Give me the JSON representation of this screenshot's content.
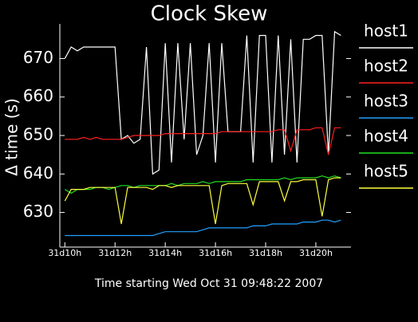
{
  "chart_data": {
    "type": "line",
    "title": "Clock Skew",
    "y_label": "Δ time (s)",
    "x_label": "Time starting Wed Oct 31  09:48:22 2007",
    "x": [
      10.0,
      10.25,
      10.5,
      10.75,
      11.0,
      11.25,
      11.5,
      11.75,
      12.0,
      12.25,
      12.5,
      12.75,
      13.0,
      13.25,
      13.5,
      13.75,
      14.0,
      14.25,
      14.5,
      14.75,
      15.0,
      15.25,
      15.5,
      15.75,
      16.0,
      16.25,
      16.5,
      16.75,
      17.0,
      17.25,
      17.5,
      17.75,
      18.0,
      18.25,
      18.5,
      18.75,
      19.0,
      19.25,
      19.5,
      19.75,
      20.0,
      20.25,
      20.5,
      20.75,
      21.0
    ],
    "series": [
      {
        "name": "host1",
        "color": "#ffffff",
        "values": [
          670,
          673,
          672,
          673,
          673,
          673,
          673,
          673,
          673,
          649,
          650,
          648,
          649,
          673,
          640,
          641,
          674,
          643,
          674,
          649,
          674,
          645,
          650,
          674,
          643,
          674,
          651,
          651,
          651,
          676,
          643,
          676,
          676,
          643,
          676,
          645,
          675,
          643,
          675,
          675,
          676,
          676,
          645,
          677,
          676
        ]
      },
      {
        "name": "host2",
        "color": "#ff2020",
        "values": [
          649,
          649,
          649,
          649.5,
          649,
          649.5,
          649,
          649,
          649,
          649,
          649.5,
          650,
          650,
          650,
          650,
          650,
          650.5,
          650.5,
          650.5,
          650.5,
          650.5,
          650.5,
          650.5,
          650.5,
          650.5,
          651,
          651,
          651,
          651,
          651,
          651,
          651,
          651,
          651,
          651.5,
          651.5,
          646,
          651.5,
          651.5,
          651.5,
          652,
          652,
          645,
          652,
          652
        ]
      },
      {
        "name": "host3",
        "color": "#20a0ff",
        "values": [
          624,
          624,
          624,
          624,
          624,
          624,
          624,
          624,
          624,
          624,
          624,
          624,
          624,
          624,
          624,
          624.5,
          625,
          625,
          625,
          625,
          625,
          625,
          625.5,
          626,
          626,
          626,
          626,
          626,
          626,
          626,
          626.5,
          626.5,
          626.5,
          627,
          627,
          627,
          627,
          627,
          627.5,
          627.5,
          627.5,
          628,
          628,
          627.5,
          628
        ]
      },
      {
        "name": "host4",
        "color": "#20e020",
        "values": [
          636,
          635,
          636,
          636,
          636,
          636.5,
          636.5,
          636,
          636.5,
          637,
          637,
          636.5,
          637,
          637,
          637,
          637,
          637,
          637.5,
          637,
          637.5,
          637.5,
          637.5,
          638,
          637.5,
          638,
          638,
          638,
          638,
          638,
          638.5,
          638.5,
          638.5,
          638.5,
          638.5,
          638.5,
          639,
          638.5,
          639,
          639,
          639,
          639,
          639.5,
          639,
          639.5,
          639
        ]
      },
      {
        "name": "host5",
        "color": "#ffff40",
        "values": [
          633,
          636,
          636,
          636,
          636.5,
          636.5,
          636.5,
          636.5,
          636.5,
          627,
          636.5,
          636.5,
          636.5,
          636.5,
          636,
          637,
          637,
          636.5,
          637,
          637,
          637,
          637,
          637,
          637,
          627,
          637,
          637.5,
          637.5,
          637.5,
          637.5,
          632,
          638,
          638,
          638,
          638,
          633,
          638,
          638,
          638.5,
          638.5,
          638.5,
          629,
          638.5,
          639,
          639
        ]
      }
    ],
    "xlim": [
      9.8,
      21.4
    ],
    "xticks": [
      {
        "value": 10,
        "label": "31d10h"
      },
      {
        "value": 12,
        "label": "31d12h"
      },
      {
        "value": 14,
        "label": "31d14h"
      },
      {
        "value": 16,
        "label": "31d16h"
      },
      {
        "value": 18,
        "label": "31d18h"
      },
      {
        "value": 20,
        "label": "31d20h"
      }
    ],
    "ylim": [
      621,
      679
    ],
    "yticks": [
      630,
      640,
      650,
      660,
      670
    ],
    "grid": false,
    "legend": "right"
  }
}
